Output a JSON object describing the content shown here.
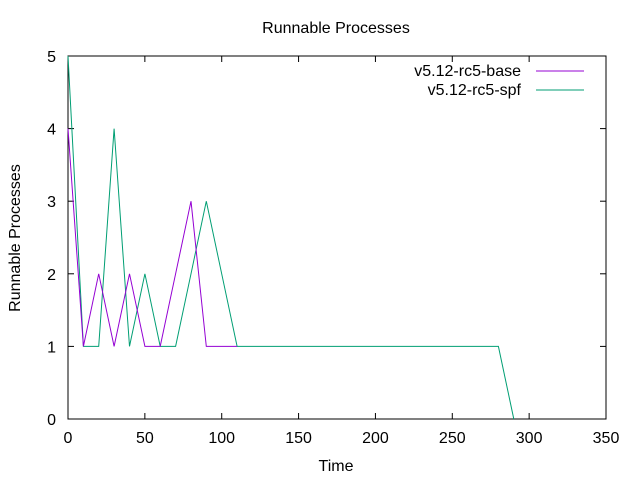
{
  "chart_data": {
    "type": "line",
    "title": "Runnable Processes",
    "xlabel": "Time",
    "ylabel": "Runnable Processes",
    "xlim": [
      0,
      350
    ],
    "ylim": [
      0,
      5
    ],
    "x_ticks": [
      0,
      50,
      100,
      150,
      200,
      250,
      300,
      350
    ],
    "y_ticks": [
      0,
      1,
      2,
      3,
      4,
      5
    ],
    "legend_position": "top-right",
    "grid": false,
    "series": [
      {
        "name": "v5.12-rc5-base",
        "color": "#9400d3",
        "points": [
          [
            0,
            4
          ],
          [
            10,
            1
          ],
          [
            20,
            2
          ],
          [
            30,
            1
          ],
          [
            40,
            2
          ],
          [
            50,
            1
          ],
          [
            60,
            1
          ],
          [
            70,
            2
          ],
          [
            80,
            3
          ],
          [
            90,
            1
          ],
          [
            100,
            1
          ],
          [
            110,
            1
          ]
        ]
      },
      {
        "name": "v5.12-rc5-spf",
        "color": "#009e73",
        "points": [
          [
            0,
            5
          ],
          [
            10,
            1
          ],
          [
            20,
            1
          ],
          [
            30,
            4
          ],
          [
            40,
            1
          ],
          [
            50,
            2
          ],
          [
            60,
            1
          ],
          [
            70,
            1
          ],
          [
            80,
            2
          ],
          [
            90,
            3
          ],
          [
            100,
            2
          ],
          [
            110,
            1
          ],
          [
            280,
            1
          ],
          [
            290,
            0
          ]
        ]
      }
    ]
  }
}
